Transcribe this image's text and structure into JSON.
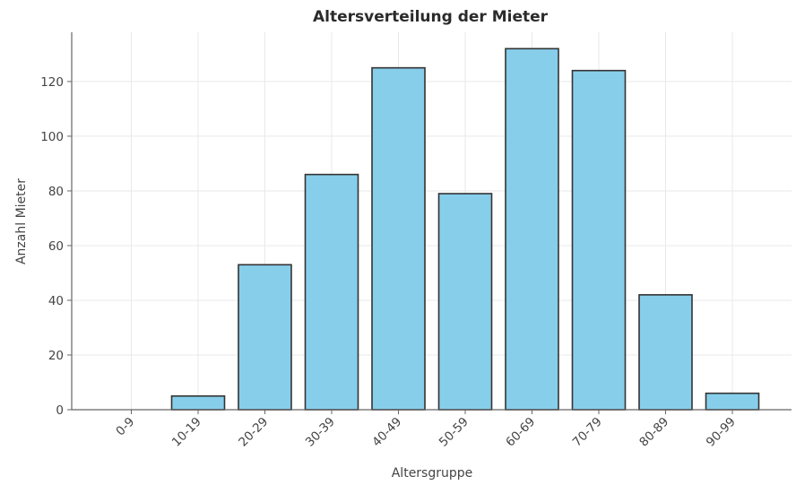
{
  "chart_data": {
    "type": "bar",
    "title": "Altersverteilung der Mieter",
    "xlabel": "Altersgruppe",
    "ylabel": "Anzahl Mieter",
    "categories": [
      "0-9",
      "10-19",
      "20-29",
      "30-39",
      "40-49",
      "50-59",
      "60-69",
      "70-79",
      "80-89",
      "90-99"
    ],
    "values": [
      0,
      5,
      53,
      86,
      125,
      79,
      132,
      124,
      42,
      6
    ],
    "ylim": [
      0,
      138
    ],
    "yticks": [
      0,
      20,
      40,
      60,
      80,
      100,
      120
    ],
    "grid": true,
    "bar_color": "#87ceeb",
    "edge_color": "#333333"
  }
}
